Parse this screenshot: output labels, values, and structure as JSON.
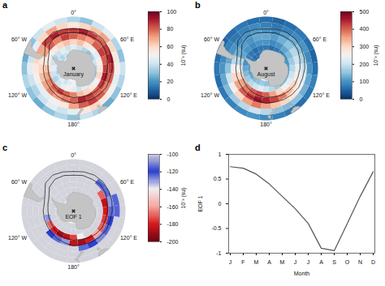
{
  "chart_data": [
    {
      "type": "map",
      "panel": "a",
      "label": "January",
      "colorbar": {
        "label": "10⁻³ (su)",
        "lim": [
          0,
          100
        ],
        "ticks": [
          0,
          20,
          40,
          60,
          80,
          100
        ]
      },
      "cells": [
        [
          35,
          30,
          40,
          45,
          35,
          30,
          40,
          35,
          30,
          25,
          35,
          40,
          30,
          35,
          30,
          25,
          30,
          35,
          30,
          25,
          30,
          40,
          45,
          40
        ],
        [
          55,
          60,
          65,
          70,
          60,
          55,
          50,
          45,
          50,
          55,
          60,
          55,
          45,
          40,
          45,
          40,
          35,
          40,
          45,
          40,
          45,
          60,
          70,
          60
        ],
        [
          85,
          90,
          85,
          80,
          85,
          90,
          85,
          80,
          75,
          80,
          85,
          80,
          70,
          55,
          50,
          45,
          45,
          50,
          55,
          60,
          70,
          85,
          90,
          85
        ],
        [
          80,
          75,
          70,
          80,
          85,
          80,
          85,
          90,
          85,
          80,
          85,
          90,
          80,
          75,
          70,
          75,
          70,
          65,
          60,
          55,
          70,
          80,
          75,
          85
        ],
        [
          60,
          65,
          55,
          50,
          45,
          50,
          55,
          60,
          50,
          55,
          60,
          65,
          75,
          80,
          85,
          80,
          75,
          70,
          65,
          55,
          50,
          55,
          60,
          65
        ],
        [
          45,
          40,
          35,
          30,
          35,
          40,
          35,
          30,
          35,
          40,
          45,
          40,
          45,
          50,
          45,
          40,
          35,
          40,
          45,
          40,
          35,
          40,
          45,
          40
        ],
        [
          40,
          45,
          40,
          35,
          40,
          45,
          40,
          35,
          40,
          45,
          40,
          45,
          50,
          45,
          40,
          45,
          40,
          35,
          40,
          45,
          40,
          35,
          40,
          45
        ]
      ]
    },
    {
      "type": "map",
      "panel": "b",
      "label": "August",
      "colorbar": {
        "label": "10⁻³ (su)",
        "lim": [
          0,
          500
        ],
        "ticks": [
          0,
          100,
          200,
          300,
          400,
          500
        ]
      },
      "cells": [
        [
          60,
          50,
          60,
          70,
          60,
          50,
          60,
          80,
          70,
          60,
          70,
          80,
          90,
          100,
          90,
          80,
          70,
          60,
          70,
          60,
          50,
          60,
          70,
          60
        ],
        [
          80,
          70,
          80,
          90,
          100,
          90,
          100,
          120,
          130,
          150,
          140,
          150,
          180,
          200,
          180,
          160,
          140,
          120,
          100,
          90,
          80,
          70,
          80,
          90
        ],
        [
          100,
          90,
          110,
          130,
          150,
          170,
          200,
          220,
          250,
          280,
          300,
          320,
          350,
          380,
          350,
          300,
          250,
          200,
          150,
          120,
          100,
          90,
          100,
          110
        ],
        [
          120,
          110,
          130,
          150,
          180,
          200,
          230,
          260,
          300,
          330,
          380,
          420,
          450,
          460,
          430,
          400,
          350,
          300,
          250,
          180,
          130,
          110,
          100,
          120
        ],
        [
          100,
          90,
          100,
          120,
          140,
          160,
          180,
          200,
          220,
          250,
          300,
          350,
          400,
          420,
          400,
          380,
          350,
          300,
          250,
          180,
          120,
          100,
          90,
          100
        ],
        [
          70,
          60,
          70,
          80,
          90,
          100,
          110,
          120,
          130,
          140,
          160,
          180,
          200,
          220,
          200,
          180,
          160,
          140,
          120,
          100,
          80,
          70,
          60,
          70
        ],
        [
          60,
          60,
          70,
          70,
          80,
          80,
          90,
          100,
          110,
          120,
          130,
          140,
          150,
          160,
          150,
          140,
          120,
          110,
          100,
          90,
          70,
          60,
          60,
          60
        ]
      ]
    },
    {
      "type": "map",
      "panel": "c",
      "label": "EOF 1",
      "colorbar": {
        "label": "10⁻³ (su)",
        "lim": [
          -200,
          -100
        ],
        "ticks": [
          -100,
          -120,
          -140,
          -160,
          -180,
          -200
        ]
      },
      "cells": [
        [
          -100,
          -100,
          -100,
          -100,
          -100,
          -100,
          -100,
          -100,
          -100,
          -100,
          -100,
          -100,
          -100,
          -100,
          -100,
          -100,
          -100,
          -100,
          -100,
          -100,
          -100,
          -100,
          -100,
          -100
        ],
        [
          -100,
          -100,
          -100,
          -100,
          -100,
          -115,
          -115,
          -100,
          -100,
          -100,
          -100,
          -100,
          -100,
          -100,
          -100,
          -100,
          -100,
          -100,
          -100,
          -100,
          -100,
          -100,
          -100,
          -100
        ],
        [
          -100,
          -100,
          -100,
          -115,
          -125,
          -130,
          -125,
          -120,
          -115,
          -110,
          -120,
          -125,
          -100,
          -100,
          -100,
          -100,
          -100,
          -100,
          -100,
          -100,
          -100,
          -100,
          -100,
          -100
        ],
        [
          -100,
          -100,
          -100,
          -100,
          -170,
          -185,
          -180,
          -175,
          -170,
          -160,
          -180,
          -190,
          -185,
          -130,
          -125,
          -120,
          -100,
          -100,
          -100,
          -100,
          -100,
          -100,
          -100,
          -100
        ],
        [
          -100,
          -100,
          -100,
          -100,
          -100,
          -100,
          -100,
          -100,
          -100,
          -100,
          -100,
          -140,
          -175,
          -185,
          -190,
          -180,
          -170,
          -130,
          -100,
          -100,
          -100,
          -100,
          -100,
          -100
        ],
        [
          -100,
          -100,
          -100,
          -100,
          -100,
          -100,
          -100,
          -100,
          -100,
          -100,
          -100,
          -100,
          -100,
          -100,
          -100,
          -100,
          -100,
          -100,
          -100,
          -100,
          -100,
          -100,
          -100,
          -100
        ],
        [
          -100,
          -100,
          -100,
          -100,
          -100,
          -100,
          -100,
          -100,
          -100,
          -100,
          -100,
          -100,
          -100,
          -100,
          -100,
          -100,
          -100,
          -100,
          -100,
          -100,
          -100,
          -100,
          -100,
          -100
        ]
      ]
    },
    {
      "type": "line",
      "panel": "d",
      "x_label": "Month",
      "y_label": "EOF 1",
      "categories": [
        "J",
        "F",
        "M",
        "A",
        "M",
        "J",
        "J",
        "A",
        "S",
        "O",
        "N",
        "D"
      ],
      "values": [
        0.75,
        0.72,
        0.6,
        0.4,
        0.15,
        -0.1,
        -0.4,
        -0.9,
        -0.95,
        -0.4,
        0.15,
        0.65
      ],
      "color": "#555555",
      "ylim": [
        -1,
        1
      ],
      "yticks": [
        -1,
        -0.5,
        0,
        0.5,
        1
      ]
    }
  ],
  "maps": {
    "lon": [
      0,
      15,
      30,
      45,
      60,
      75,
      90,
      105,
      120,
      135,
      150,
      165,
      180,
      195,
      210,
      225,
      240,
      255,
      270,
      285,
      300,
      315,
      330,
      345
    ],
    "lat": [
      -38,
      -44,
      -50,
      -56,
      -62,
      -68,
      -74
    ],
    "lon_labels": [
      {
        "value": 0,
        "label": "0°"
      },
      {
        "value": 60,
        "label": "60° E"
      },
      {
        "value": 120,
        "label": "120° E"
      },
      {
        "value": 180,
        "label": "180°"
      },
      {
        "value": -120,
        "label": "120° W"
      },
      {
        "value": -60,
        "label": "60° W"
      }
    ],
    "contours": [
      [
        -48,
        -47,
        -46,
        -46,
        -47,
        -48,
        -49,
        -50,
        -50,
        -51,
        -52,
        -53,
        -53,
        -55,
        -56,
        -57,
        -58,
        -58,
        -58,
        -58,
        -55,
        -48,
        -46,
        -47
      ],
      [
        -52,
        -51,
        -51,
        -50,
        -51,
        -53,
        -54,
        -55,
        -55,
        -56,
        -57,
        -59,
        -59,
        -60,
        -61,
        -62,
        -63,
        -63,
        -63,
        -62,
        -60,
        -54,
        -51,
        -51
      ]
    ],
    "land": [
      [
        [
          0,
          -70
        ],
        [
          15,
          -70
        ],
        [
          30,
          -69.5
        ],
        [
          45,
          -67.8
        ],
        [
          60,
          -67
        ],
        [
          72,
          -69.5
        ],
        [
          80,
          -67.5
        ],
        [
          90,
          -66.5
        ],
        [
          105,
          -66
        ],
        [
          120,
          -66.5
        ],
        [
          135,
          -66.3
        ],
        [
          150,
          -68.5
        ],
        [
          165,
          -70.5
        ],
        [
          170,
          -71.5
        ],
        [
          168,
          -77
        ],
        [
          180,
          -78
        ],
        [
          -165,
          -78.5
        ],
        [
          -150,
          -77
        ],
        [
          -140,
          -75.5
        ],
        [
          -125,
          -74
        ],
        [
          -110,
          -74.5
        ],
        [
          -100,
          -73
        ],
        [
          -90,
          -73
        ],
        [
          -80,
          -73
        ],
        [
          -75,
          -71
        ],
        [
          -68,
          -68
        ],
        [
          -65,
          -65.5
        ],
        [
          -58,
          -63.3
        ],
        [
          -60,
          -64.5
        ],
        [
          -62,
          -67
        ],
        [
          -62,
          -70
        ],
        [
          -61,
          -74
        ],
        [
          -50,
          -78
        ],
        [
          -35,
          -78
        ],
        [
          -28,
          -75
        ],
        [
          -20,
          -73.5
        ],
        [
          -12,
          -71.5
        ]
      ],
      [
        [
          -73,
          -35
        ],
        [
          -73.5,
          -40
        ],
        [
          -74,
          -45
        ],
        [
          -75,
          -50
        ],
        [
          -74,
          -53
        ],
        [
          -71,
          -54.5
        ],
        [
          -67,
          -55.5
        ],
        [
          -65,
          -55
        ],
        [
          -68,
          -53
        ],
        [
          -69,
          -51
        ],
        [
          -67,
          -48
        ],
        [
          -66,
          -46
        ],
        [
          -65,
          -43
        ],
        [
          -63,
          -41
        ],
        [
          -62,
          -39
        ],
        [
          -58,
          -38.5
        ],
        [
          -57,
          -36.5
        ],
        [
          -57,
          -35
        ]
      ],
      [
        [
          136,
          -35
        ],
        [
          137.5,
          -35.5
        ],
        [
          138.5,
          -35.7
        ],
        [
          140,
          -37.8
        ],
        [
          143,
          -38.8
        ],
        [
          146,
          -39.1
        ],
        [
          148,
          -37.8
        ],
        [
          150,
          -37.5
        ],
        [
          150.5,
          -35.5
        ],
        [
          150.8,
          -35
        ]
      ],
      [
        [
          144.7,
          -40.7
        ],
        [
          148.3,
          -40.9
        ],
        [
          148.3,
          -42.2
        ],
        [
          147,
          -43.6
        ],
        [
          145.3,
          -42.5
        ]
      ],
      [
        [
          166.5,
          -45.8
        ],
        [
          168.3,
          -46.6
        ],
        [
          170.7,
          -45.9
        ],
        [
          171.3,
          -44.3
        ],
        [
          173,
          -43.7
        ],
        [
          174.3,
          -41.7
        ],
        [
          172.7,
          -40.5
        ],
        [
          171.5,
          -41.8
        ],
        [
          170,
          -43.2
        ],
        [
          167.5,
          -44.5
        ]
      ],
      [
        [
          174.8,
          -41.3
        ],
        [
          176.9,
          -39.8
        ],
        [
          178.4,
          -37.7
        ],
        [
          175.9,
          -37.2
        ],
        [
          174.8,
          -36.2
        ],
        [
          174.3,
          -35.3
        ],
        [
          173.2,
          -35
        ],
        [
          174.6,
          -37
        ],
        [
          174.6,
          -39
        ],
        [
          175.2,
          -40.3
        ]
      ]
    ]
  }
}
